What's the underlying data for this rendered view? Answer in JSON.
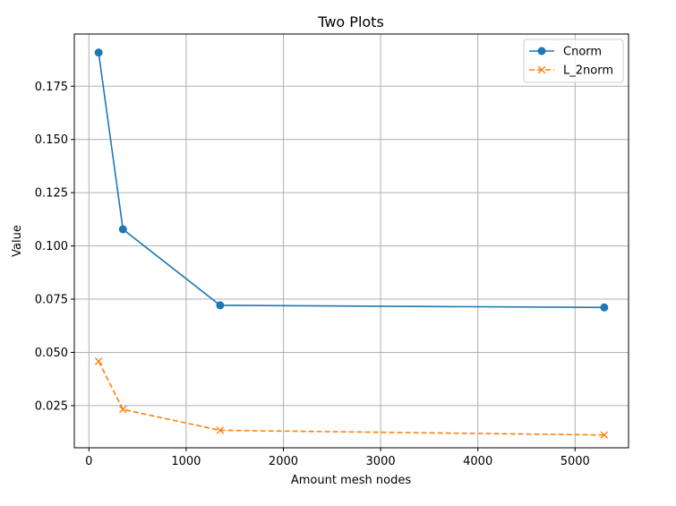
{
  "chart_data": {
    "type": "line",
    "title": "Two Plots",
    "xlabel": "Amount mesh nodes",
    "ylabel": "Value",
    "xlim": [
      -150,
      5550
    ],
    "ylim": [
      0.0052,
      0.1995
    ],
    "xticks": [
      0,
      1000,
      2000,
      3000,
      4000,
      5000
    ],
    "xtick_labels": [
      "0",
      "1000",
      "2000",
      "3000",
      "4000",
      "5000"
    ],
    "yticks": [
      0.025,
      0.05,
      0.075,
      0.1,
      0.125,
      0.15,
      0.175
    ],
    "ytick_labels": [
      "0.025",
      "0.050",
      "0.075",
      "0.100",
      "0.125",
      "0.150",
      "0.175"
    ],
    "grid": true,
    "legend": {
      "position": "top-right"
    },
    "series": [
      {
        "name": "Cnorm",
        "color": "#1f77b4",
        "marker": "circle",
        "line_style": "solid",
        "x": [
          100,
          350,
          1350,
          5300
        ],
        "y": [
          0.1908,
          0.1078,
          0.0721,
          0.0711
        ]
      },
      {
        "name": "L_2norm",
        "color": "#ff7f0e",
        "marker": "x",
        "line_style": "dashed",
        "x": [
          100,
          350,
          1350,
          5300
        ],
        "y": [
          0.0458,
          0.0232,
          0.0134,
          0.0112
        ]
      }
    ]
  }
}
